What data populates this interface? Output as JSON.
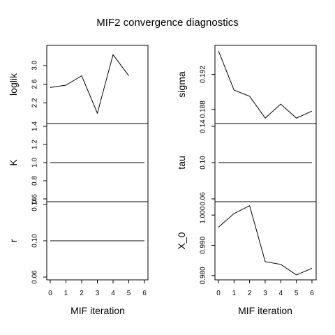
{
  "chart_data": {
    "type": "line",
    "title": "MIF2 convergence diagnostics",
    "xlabel": "MIF iteration",
    "x": [
      0,
      1,
      2,
      3,
      4,
      5,
      6
    ],
    "xlim": [
      0,
      6
    ],
    "xticks": [
      "0",
      "1",
      "2",
      "3",
      "4",
      "5",
      "6"
    ],
    "panels": [
      {
        "name": "loglik",
        "ylabel": "loglik",
        "x": [
          0,
          1,
          2,
          3,
          4,
          5
        ],
        "values": [
          2.53,
          2.58,
          2.78,
          1.98,
          3.23,
          2.78
        ],
        "ylim": [
          1.82,
          3.37
        ],
        "yticks": [
          "2.2",
          "2.6",
          "3.0"
        ]
      },
      {
        "name": "K",
        "ylabel": "K",
        "x": [
          0,
          1,
          2,
          3,
          4,
          5,
          6
        ],
        "values": [
          1.0,
          1.0,
          1.0,
          1.0,
          1.0,
          1.0,
          1.0
        ],
        "ylim": [
          0.6,
          1.4
        ],
        "yticks": [
          "0.6",
          "0.8",
          "1.0",
          "1.2",
          "1.4"
        ]
      },
      {
        "name": "r",
        "ylabel": "r",
        "x": [
          0,
          1,
          2,
          3,
          4,
          5,
          6
        ],
        "values": [
          0.1,
          0.1,
          0.1,
          0.1,
          0.1,
          0.1,
          0.1
        ],
        "ylim": [
          0.06,
          0.14
        ],
        "yticks": [
          "0.06",
          "0.10",
          "0.14"
        ]
      },
      {
        "name": "sigma",
        "ylabel": "sigma",
        "x": [
          0,
          1,
          2,
          3,
          4,
          5,
          6
        ],
        "values": [
          0.1947,
          0.1902,
          0.1895,
          0.187,
          0.1886,
          0.187,
          0.1878
        ],
        "ylim": [
          0.1867,
          0.195
        ],
        "yticks": [
          "0.188",
          "0.192"
        ]
      },
      {
        "name": "tau",
        "ylabel": "tau",
        "x": [
          0,
          1,
          2,
          3,
          4,
          5,
          6
        ],
        "values": [
          0.1,
          0.1,
          0.1,
          0.1,
          0.1,
          0.1,
          0.1
        ],
        "ylim": [
          0.06,
          0.14
        ],
        "yticks": [
          "0.06",
          "0.10",
          "0.14"
        ]
      },
      {
        "name": "X_0",
        "ylabel": "X_0",
        "x": [
          0,
          1,
          2,
          3,
          4,
          5,
          6
        ],
        "values": [
          0.996,
          1.0005,
          1.0031,
          0.9846,
          0.9837,
          0.9802,
          0.9824
        ],
        "ylim": [
          0.9795,
          1.0035
        ],
        "yticks": [
          "0.980",
          "0.990",
          "1.000"
        ]
      }
    ]
  }
}
